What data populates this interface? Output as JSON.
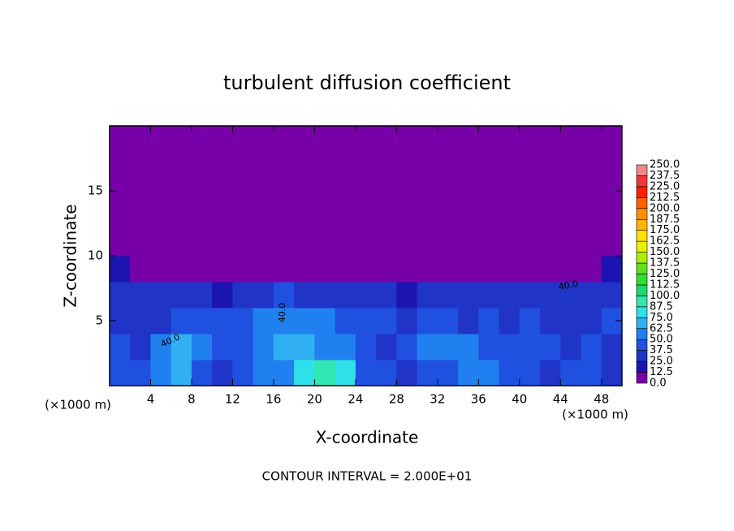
{
  "chart_data": {
    "type": "contour",
    "title": "turbulent diffusion coefficient",
    "xlabel": "X-coordinate",
    "ylabel": "Z-coordinate",
    "xunit": "(×1000 m)",
    "yunit": "(×1000 m)",
    "footer": "CONTOUR INTERVAL = 2.000E+01",
    "xlim": [
      0,
      50
    ],
    "ylim": [
      0,
      20
    ],
    "xticks": [
      4,
      8,
      12,
      16,
      20,
      24,
      28,
      32,
      36,
      40,
      44,
      48
    ],
    "yticks": [
      5,
      10,
      15
    ],
    "annotations": [
      "40.0",
      "40.0",
      "40.0"
    ],
    "levels": [
      {
        "value": 0,
        "label": "0.0"
      },
      {
        "value": 12.5,
        "label": "12.5"
      },
      {
        "value": 25,
        "label": "25.0"
      },
      {
        "value": 37.5,
        "label": "37.5"
      },
      {
        "value": 50,
        "label": "50.0"
      },
      {
        "value": 62.5,
        "label": "62.5"
      },
      {
        "value": 75,
        "label": "75.0"
      },
      {
        "value": 87.5,
        "label": "87.5"
      },
      {
        "value": 100,
        "label": "100.0"
      },
      {
        "value": 112.5,
        "label": "112.5"
      },
      {
        "value": 125,
        "label": "125.0"
      },
      {
        "value": 137.5,
        "label": "137.5"
      },
      {
        "value": 150,
        "label": "150.0"
      },
      {
        "value": 162.5,
        "label": "162.5"
      },
      {
        "value": 175,
        "label": "175.0"
      },
      {
        "value": 187.5,
        "label": "187.5"
      },
      {
        "value": 200,
        "label": "200.0"
      },
      {
        "value": 212.5,
        "label": "212.5"
      },
      {
        "value": 225,
        "label": "225.0"
      },
      {
        "value": 237.5,
        "label": "237.5"
      },
      {
        "value": 250,
        "label": "250.0"
      }
    ],
    "colors": [
      "#7800a8",
      "#1c14b0",
      "#2034c8",
      "#2050e0",
      "#2080f0",
      "#30b0f0",
      "#30e0e8",
      "#30e8b0",
      "#20d870",
      "#30e030",
      "#60e020",
      "#a8f000",
      "#e8f000",
      "#ffe000",
      "#ffb400",
      "#ff9000",
      "#ff6000",
      "#ff2000",
      "#f03838",
      "#f08888"
    ],
    "field": [
      [
        45,
        40,
        55,
        70,
        45,
        35,
        40,
        50,
        60,
        75,
        90,
        80,
        45,
        40,
        35,
        40,
        45,
        50,
        55,
        45,
        40,
        35,
        45,
        40,
        35
      ],
      [
        40,
        35,
        50,
        65,
        60,
        45,
        40,
        55,
        65,
        70,
        60,
        55,
        40,
        35,
        40,
        55,
        60,
        50,
        45,
        40,
        45,
        40,
        35,
        40,
        35
      ],
      [
        35,
        30,
        35,
        40,
        45,
        40,
        45,
        50,
        60,
        55,
        50,
        45,
        40,
        45,
        35,
        40,
        45,
        35,
        40,
        35,
        40,
        35,
        30,
        35,
        40
      ],
      [
        30,
        35,
        30,
        30,
        25,
        20,
        30,
        35,
        40,
        35,
        30,
        35,
        30,
        25,
        20,
        25,
        30,
        25,
        30,
        25,
        30,
        25,
        30,
        30,
        35
      ],
      [
        15,
        10,
        0,
        0,
        0,
        0,
        0,
        0,
        5,
        10,
        5,
        0,
        0,
        0,
        0,
        0,
        0,
        0,
        0,
        0,
        0,
        5,
        10,
        10,
        15
      ],
      [
        0,
        0,
        0,
        0,
        0,
        0,
        0,
        0,
        0,
        0,
        0,
        0,
        0,
        0,
        0,
        0,
        0,
        0,
        0,
        0,
        0,
        0,
        0,
        0,
        0
      ],
      [
        0,
        0,
        0,
        0,
        0,
        0,
        0,
        0,
        0,
        0,
        0,
        0,
        0,
        0,
        0,
        0,
        0,
        0,
        0,
        0,
        0,
        0,
        0,
        0,
        0
      ],
      [
        0,
        0,
        0,
        0,
        0,
        0,
        0,
        0,
        0,
        0,
        0,
        0,
        0,
        0,
        0,
        0,
        0,
        0,
        0,
        0,
        0,
        0,
        0,
        0,
        0
      ],
      [
        0,
        0,
        0,
        0,
        0,
        0,
        0,
        0,
        0,
        0,
        0,
        0,
        0,
        0,
        0,
        0,
        0,
        0,
        0,
        0,
        0,
        0,
        0,
        0,
        0
      ],
      [
        0,
        0,
        0,
        0,
        0,
        0,
        0,
        0,
        0,
        0,
        0,
        0,
        0,
        0,
        0,
        0,
        0,
        0,
        0,
        0,
        0,
        0,
        0,
        0,
        0
      ]
    ]
  }
}
